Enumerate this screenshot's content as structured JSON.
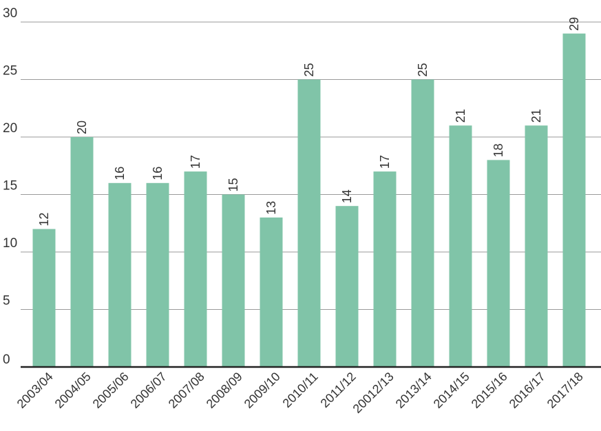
{
  "chart_data": {
    "type": "bar",
    "title": "",
    "xlabel": "",
    "ylabel": "",
    "categories": [
      "2003/04",
      "2004/05",
      "2005/06",
      "2006/07",
      "2007/08",
      "2008/09",
      "2009/10",
      "2010/11",
      "2011/12",
      "20012/13",
      "2013/14",
      "2014/15",
      "2015/16",
      "2016/17",
      "2017/18"
    ],
    "values": [
      12,
      20,
      16,
      16,
      17,
      15,
      13,
      25,
      14,
      17,
      25,
      21,
      18,
      21,
      29
    ],
    "ylim": [
      0,
      30
    ],
    "yticks": [
      0,
      5,
      10,
      15,
      20,
      25,
      30
    ],
    "grid": true,
    "data_labels": true,
    "colors": {
      "bar": "#80c4a8",
      "grid": "#9a9a9a",
      "axis": "#222222",
      "text": "#333333"
    }
  }
}
